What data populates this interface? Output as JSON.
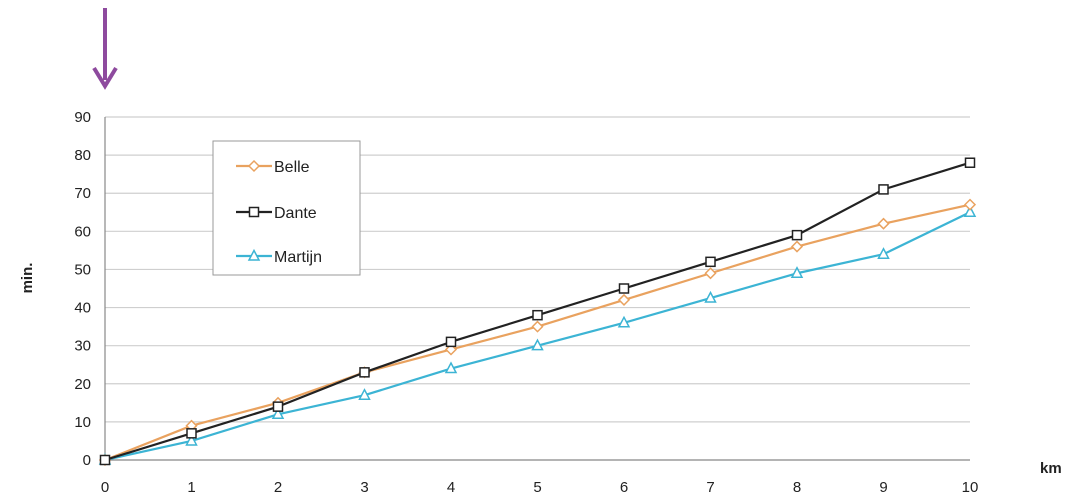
{
  "chart_data": {
    "type": "line",
    "title": "",
    "xlabel": "km",
    "ylabel": "min.",
    "x": [
      0,
      1,
      2,
      3,
      4,
      5,
      6,
      7,
      8,
      9,
      10
    ],
    "xlim": [
      0,
      10
    ],
    "ylim": [
      0,
      90
    ],
    "yticks": [
      0,
      10,
      20,
      30,
      40,
      50,
      60,
      70,
      80,
      90
    ],
    "grid": true,
    "legend_position": "top-left",
    "series": [
      {
        "name": "Belle",
        "marker": "diamond",
        "color": "#e9a25f",
        "values": [
          0,
          9,
          15,
          23,
          29,
          35,
          42,
          49,
          56,
          62,
          67
        ]
      },
      {
        "name": "Dante",
        "marker": "square",
        "color": "#222222",
        "values": [
          0,
          7,
          14,
          23,
          31,
          38,
          45,
          52,
          59,
          71,
          78
        ]
      },
      {
        "name": "Martijn",
        "marker": "triangle",
        "color": "#3cb4d4",
        "values": [
          0,
          5,
          12,
          17,
          24,
          30,
          36,
          42.5,
          49,
          54,
          65
        ]
      }
    ]
  },
  "annotation": {
    "arrow_color": "#8e4a9e"
  }
}
